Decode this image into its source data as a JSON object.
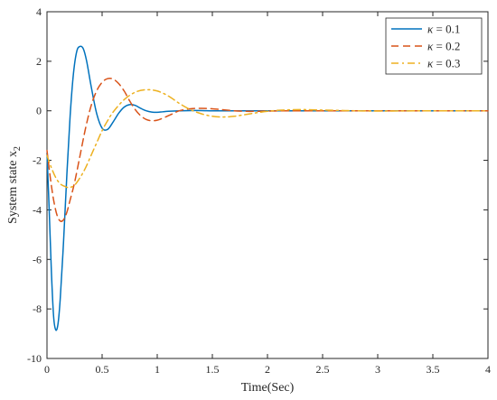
{
  "chart_data": {
    "type": "line",
    "title": "",
    "xlabel": "Time(Sec)",
    "ylabel": "System state x",
    "ylabel_sub": "2",
    "xlim": [
      0,
      4
    ],
    "ylim": [
      -10,
      4
    ],
    "xticks": [
      0,
      0.5,
      1,
      1.5,
      2,
      2.5,
      3,
      3.5,
      4
    ],
    "xtick_labels": [
      "0",
      "0.5",
      "1",
      "1.5",
      "2",
      "2.5",
      "3",
      "3.5",
      "4"
    ],
    "yticks": [
      -10,
      -8,
      -6,
      -4,
      -2,
      0,
      2,
      4
    ],
    "ytick_labels": [
      "-10",
      "-8",
      "-6",
      "-4",
      "-2",
      "0",
      "2",
      "4"
    ],
    "grid": false,
    "legend_position": "top-right",
    "series": [
      {
        "name": "κ = 0.1",
        "legend_symbol": "κ",
        "legend_rest": " = 0.1",
        "color": "#0072BD",
        "style": "solid",
        "x": [
          0,
          0.02,
          0.04,
          0.06,
          0.08,
          0.1,
          0.12,
          0.15,
          0.18,
          0.21,
          0.24,
          0.27,
          0.3,
          0.33,
          0.36,
          0.4,
          0.45,
          0.5,
          0.55,
          0.6,
          0.65,
          0.7,
          0.75,
          0.8,
          0.85,
          0.9,
          0.95,
          1.0,
          1.05,
          1.1,
          1.2,
          1.3,
          1.4,
          1.5,
          1.6,
          1.8,
          2.0,
          2.5,
          3.0,
          4.0
        ],
        "y": [
          -1.7,
          -4.0,
          -6.5,
          -8.3,
          -8.85,
          -8.6,
          -7.6,
          -5.3,
          -2.6,
          -0.2,
          1.5,
          2.4,
          2.6,
          2.5,
          2.0,
          1.0,
          -0.1,
          -0.7,
          -0.75,
          -0.45,
          -0.1,
          0.15,
          0.25,
          0.22,
          0.1,
          0.0,
          -0.05,
          -0.06,
          -0.04,
          -0.02,
          0.0,
          0.01,
          0.01,
          0.0,
          0.0,
          0.0,
          0.0,
          0.0,
          0.0,
          0.0
        ]
      },
      {
        "name": "κ = 0.2",
        "legend_symbol": "κ",
        "legend_rest": " = 0.2",
        "color": "#D95319",
        "style": "dashed",
        "x": [
          0,
          0.03,
          0.06,
          0.09,
          0.12,
          0.15,
          0.18,
          0.21,
          0.25,
          0.3,
          0.35,
          0.4,
          0.45,
          0.5,
          0.55,
          0.6,
          0.65,
          0.7,
          0.75,
          0.8,
          0.85,
          0.9,
          0.95,
          1.0,
          1.05,
          1.1,
          1.15,
          1.2,
          1.3,
          1.4,
          1.5,
          1.6,
          1.7,
          1.8,
          1.9,
          2.0,
          2.2,
          2.5,
          3.0,
          4.0
        ],
        "y": [
          -1.6,
          -2.7,
          -3.6,
          -4.2,
          -4.45,
          -4.4,
          -4.1,
          -3.6,
          -2.9,
          -1.8,
          -0.7,
          0.2,
          0.8,
          1.15,
          1.3,
          1.28,
          1.1,
          0.8,
          0.4,
          0.05,
          -0.2,
          -0.35,
          -0.4,
          -0.38,
          -0.3,
          -0.2,
          -0.1,
          0.0,
          0.08,
          0.1,
          0.08,
          0.04,
          0.0,
          -0.02,
          -0.02,
          -0.01,
          0.0,
          0.0,
          0.0,
          0.0
        ]
      },
      {
        "name": "κ = 0.3",
        "legend_symbol": "κ",
        "legend_rest": " = 0.3",
        "color": "#EDB120",
        "style": "dashdot",
        "x": [
          0,
          0.04,
          0.08,
          0.12,
          0.16,
          0.2,
          0.25,
          0.3,
          0.35,
          0.4,
          0.45,
          0.5,
          0.55,
          0.6,
          0.7,
          0.8,
          0.9,
          1.0,
          1.1,
          1.2,
          1.3,
          1.4,
          1.5,
          1.6,
          1.7,
          1.8,
          1.9,
          2.0,
          2.1,
          2.2,
          2.3,
          2.4,
          2.5,
          2.6,
          2.8,
          3.0,
          3.5,
          4.0
        ],
        "y": [
          -1.8,
          -2.3,
          -2.7,
          -2.95,
          -3.05,
          -3.1,
          -3.0,
          -2.7,
          -2.3,
          -1.8,
          -1.3,
          -0.8,
          -0.4,
          -0.05,
          0.45,
          0.75,
          0.85,
          0.8,
          0.6,
          0.3,
          0.05,
          -0.12,
          -0.22,
          -0.25,
          -0.22,
          -0.15,
          -0.08,
          -0.02,
          0.02,
          0.04,
          0.05,
          0.04,
          0.03,
          0.02,
          0.0,
          -0.01,
          0.0,
          0.0
        ]
      }
    ]
  }
}
